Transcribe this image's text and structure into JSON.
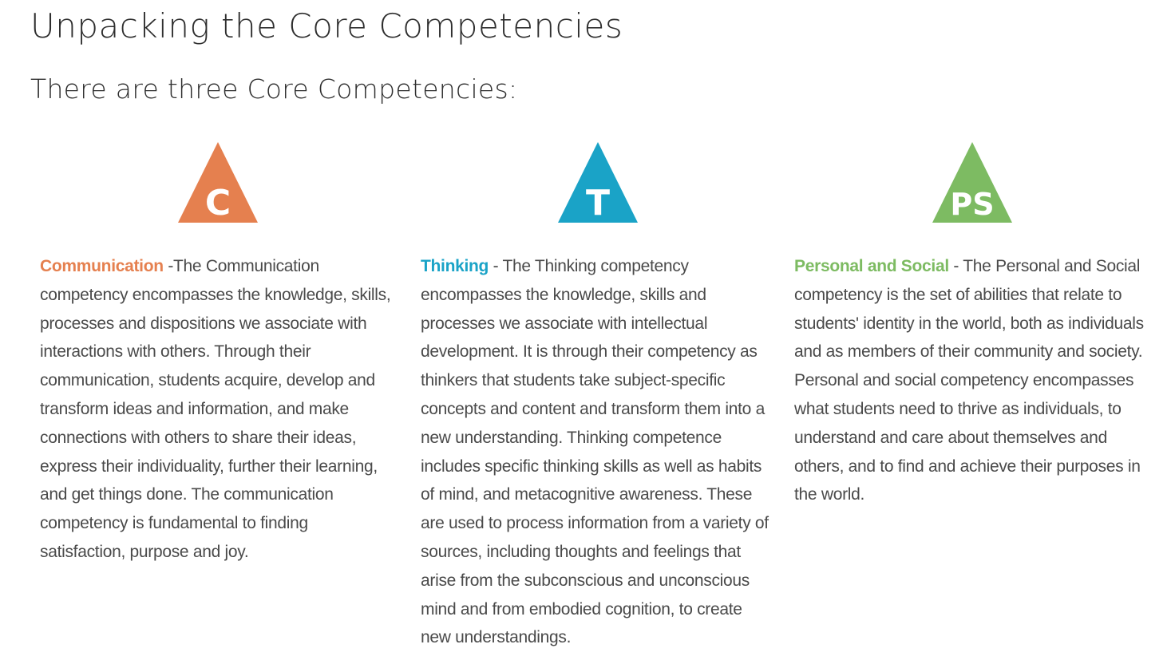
{
  "title": "Unpacking the Core Competencies",
  "subtitle": "There are three Core Competencies:",
  "colors": {
    "communication": "#e5804f",
    "thinking": "#1aa3c7",
    "personal_social": "#7dbb62"
  },
  "competencies": [
    {
      "icon_letter": "C",
      "term": "Communication",
      "separator": " -",
      "description": "The Communication competency encompasses the knowledge, skills, processes and dispositions we associate with interactions with others. Through their communication, students acquire, develop and transform ideas and information, and make connections with others to share their ideas, express their individuality, further their learning, and get things done. The communication competency is fundamental to finding satisfaction, purpose and joy."
    },
    {
      "icon_letter": "T",
      "term": "Thinking",
      "separator": " - ",
      "description": "The Thinking competency encompasses the knowledge, skills and processes we associate with intellectual development. It is through their competency as thinkers that students take subject-specific concepts and content and transform them into a new understanding. Thinking competence includes specific thinking skills as well as habits of mind, and metacognitive awareness. These are used to process information from a variety of sources, including thoughts and feelings that arise from the subconscious and unconscious mind and from embodied cognition, to create new understandings."
    },
    {
      "icon_letter": "PS",
      "term": "Personal and Social",
      "separator": " - ",
      "description": "The Personal and Social competency is the set of abilities that relate to students' identity in the world, both as individuals and as members of their community and society. Personal and social competency encompasses what students need to thrive as individuals, to understand and care about themselves and others, and to find and achieve their purposes in the world."
    }
  ]
}
